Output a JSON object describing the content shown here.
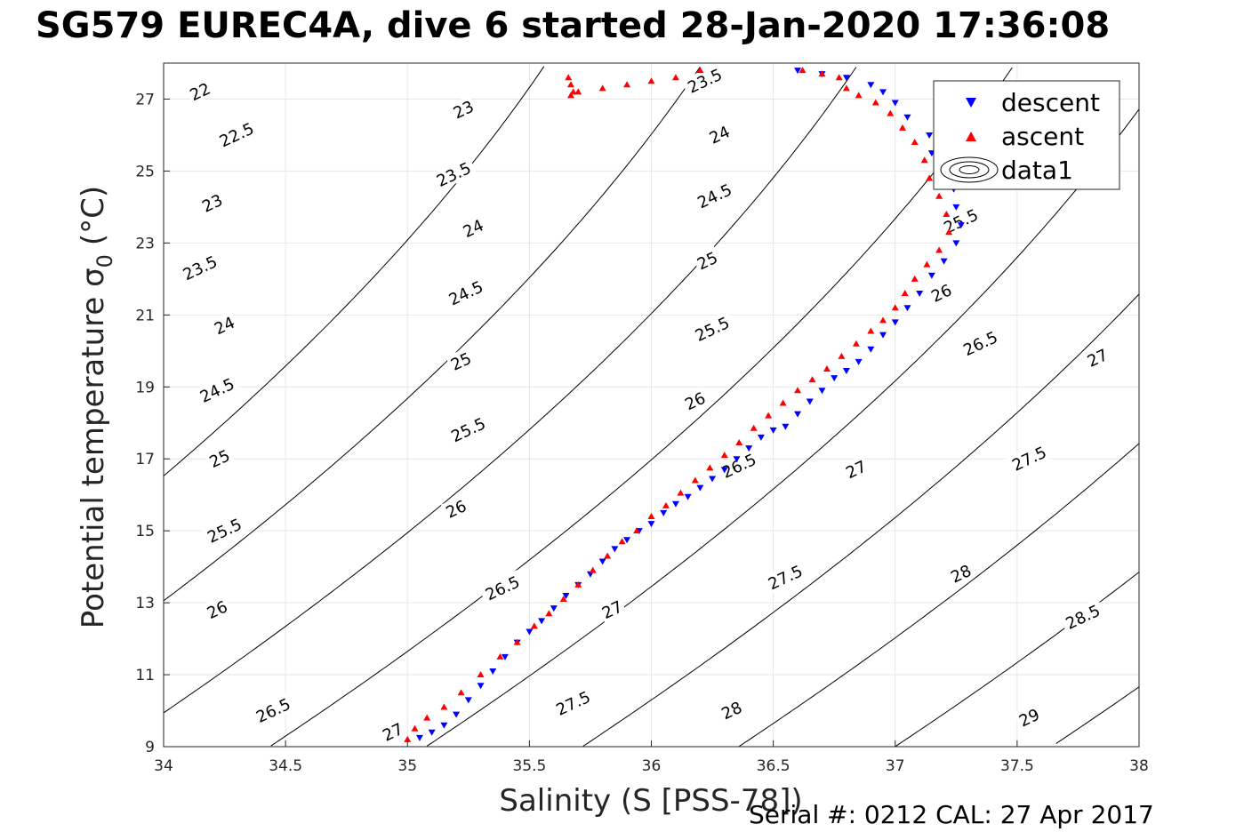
{
  "title": "SG579 EUREC4A, dive 6 started 28-Jan-2020 17:36:08",
  "footer": "Serial #: 0212  CAL: 27 Apr 2017",
  "chart_data": {
    "type": "scatter",
    "xlabel": "Salinity (S [PSS-78])",
    "ylabel": "Potential temperature σ",
    "ylabel_sub": "0",
    "ylabel_unit": "(°C)",
    "xlim": [
      34,
      38
    ],
    "ylim": [
      9,
      28
    ],
    "xticks": [
      34,
      34.5,
      35,
      35.5,
      36,
      36.5,
      37,
      37.5,
      38
    ],
    "xtick_labels": [
      "34",
      "34.5",
      "35",
      "35.5",
      "36",
      "36.5",
      "37",
      "37.5",
      "38"
    ],
    "yticks": [
      9,
      11,
      13,
      15,
      17,
      19,
      21,
      23,
      25,
      27
    ],
    "ytick_labels": [
      "9",
      "11",
      "13",
      "15",
      "17",
      "19",
      "21",
      "23",
      "25",
      "27"
    ],
    "grid": true,
    "legend_position": "top-right",
    "legend": [
      {
        "label": "descent",
        "marker": "triangle-down",
        "color": "#0000ff"
      },
      {
        "label": "ascent",
        "marker": "triangle-up",
        "color": "#ff0000"
      },
      {
        "label": "data1",
        "marker": "contour-ellipses",
        "color": "#000000"
      }
    ],
    "contour_levels": [
      22,
      22.5,
      23,
      23.5,
      24,
      24.5,
      25,
      25.5,
      26,
      26.5,
      27,
      27.5,
      28,
      28.5,
      29
    ],
    "contour_labels": [
      {
        "text": "22",
        "s": 34.15,
        "t": 27.2
      },
      {
        "text": "22.5",
        "s": 34.3,
        "t": 26.0
      },
      {
        "text": "23",
        "s": 34.2,
        "t": 24.1
      },
      {
        "text": "23",
        "s": 35.23,
        "t": 26.7
      },
      {
        "text": "23.5",
        "s": 34.15,
        "t": 22.3
      },
      {
        "text": "23.5",
        "s": 35.19,
        "t": 24.9
      },
      {
        "text": "23.5",
        "s": 36.22,
        "t": 27.5
      },
      {
        "text": "24",
        "s": 34.25,
        "t": 20.7
      },
      {
        "text": "24",
        "s": 35.27,
        "t": 23.4
      },
      {
        "text": "24",
        "s": 36.28,
        "t": 26.0
      },
      {
        "text": "24.5",
        "s": 34.22,
        "t": 18.9
      },
      {
        "text": "24.5",
        "s": 35.24,
        "t": 21.6
      },
      {
        "text": "24.5",
        "s": 36.26,
        "t": 24.3
      },
      {
        "text": "25",
        "s": 34.23,
        "t": 17.0
      },
      {
        "text": "25",
        "s": 35.22,
        "t": 19.7
      },
      {
        "text": "25",
        "s": 36.23,
        "t": 22.5
      },
      {
        "text": "25.5",
        "s": 34.25,
        "t": 15.0
      },
      {
        "text": "25.5",
        "s": 35.25,
        "t": 17.8
      },
      {
        "text": "25.5",
        "s": 36.25,
        "t": 20.6
      },
      {
        "text": "25.5",
        "s": 37.27,
        "t": 23.6
      },
      {
        "text": "26",
        "s": 34.22,
        "t": 12.8
      },
      {
        "text": "26",
        "s": 35.2,
        "t": 15.6
      },
      {
        "text": "26",
        "s": 36.18,
        "t": 18.6
      },
      {
        "text": "26",
        "s": 37.19,
        "t": 21.6
      },
      {
        "text": "26.5",
        "s": 34.45,
        "t": 10.0
      },
      {
        "text": "26.5",
        "s": 35.39,
        "t": 13.4
      },
      {
        "text": "26.5",
        "s": 36.36,
        "t": 16.8
      },
      {
        "text": "26.5",
        "s": 37.35,
        "t": 20.2
      },
      {
        "text": "27",
        "s": 34.94,
        "t": 9.4
      },
      {
        "text": "27",
        "s": 35.84,
        "t": 12.8
      },
      {
        "text": "27",
        "s": 36.84,
        "t": 16.7
      },
      {
        "text": "27",
        "s": 37.83,
        "t": 19.8
      },
      {
        "text": "27.5",
        "s": 35.68,
        "t": 10.2
      },
      {
        "text": "27.5",
        "s": 36.55,
        "t": 13.7
      },
      {
        "text": "27.5",
        "s": 37.55,
        "t": 17.0
      },
      {
        "text": "28",
        "s": 36.33,
        "t": 10.0
      },
      {
        "text": "28",
        "s": 37.27,
        "t": 13.8
      },
      {
        "text": "28.5",
        "s": 37.77,
        "t": 12.6
      },
      {
        "text": "29",
        "s": 37.55,
        "t": 9.8
      }
    ],
    "series": [
      {
        "name": "descent",
        "points": [
          [
            35.05,
            9.25
          ],
          [
            35.1,
            9.4
          ],
          [
            35.15,
            9.6
          ],
          [
            35.2,
            9.9
          ],
          [
            35.25,
            10.3
          ],
          [
            35.3,
            10.7
          ],
          [
            35.35,
            11.1
          ],
          [
            35.4,
            11.5
          ],
          [
            35.45,
            11.9
          ],
          [
            35.5,
            12.2
          ],
          [
            35.55,
            12.5
          ],
          [
            35.6,
            12.85
          ],
          [
            35.65,
            13.2
          ],
          [
            35.7,
            13.5
          ],
          [
            35.75,
            13.8
          ],
          [
            35.8,
            14.15
          ],
          [
            35.85,
            14.5
          ],
          [
            35.9,
            14.75
          ],
          [
            35.95,
            15.0
          ],
          [
            36.0,
            15.2
          ],
          [
            36.05,
            15.5
          ],
          [
            36.1,
            15.75
          ],
          [
            36.15,
            15.95
          ],
          [
            36.2,
            16.2
          ],
          [
            36.25,
            16.45
          ],
          [
            36.3,
            16.7
          ],
          [
            36.35,
            17.0
          ],
          [
            36.4,
            17.3
          ],
          [
            36.45,
            17.6
          ],
          [
            36.5,
            17.8
          ],
          [
            36.55,
            17.9
          ],
          [
            36.6,
            18.25
          ],
          [
            36.65,
            18.6
          ],
          [
            36.7,
            18.9
          ],
          [
            36.75,
            19.25
          ],
          [
            36.8,
            19.45
          ],
          [
            36.85,
            19.7
          ],
          [
            36.9,
            20.05
          ],
          [
            36.95,
            20.45
          ],
          [
            37.0,
            20.8
          ],
          [
            37.05,
            21.2
          ],
          [
            37.1,
            21.6
          ],
          [
            37.15,
            22.1
          ],
          [
            37.2,
            22.5
          ],
          [
            37.25,
            23.0
          ],
          [
            37.27,
            23.5
          ],
          [
            37.25,
            24.0
          ],
          [
            37.24,
            24.5
          ],
          [
            37.2,
            25.0
          ],
          [
            37.15,
            25.5
          ],
          [
            37.14,
            26.0
          ],
          [
            37.05,
            26.5
          ],
          [
            37.0,
            26.9
          ],
          [
            36.95,
            27.2
          ],
          [
            36.9,
            27.4
          ],
          [
            36.8,
            27.6
          ],
          [
            36.7,
            27.7
          ],
          [
            36.6,
            27.8
          ]
        ]
      },
      {
        "name": "ascent",
        "points": [
          [
            35.0,
            9.2
          ],
          [
            35.03,
            9.5
          ],
          [
            35.08,
            9.8
          ],
          [
            35.15,
            10.1
          ],
          [
            35.22,
            10.5
          ],
          [
            35.3,
            11.0
          ],
          [
            35.38,
            11.5
          ],
          [
            35.45,
            11.9
          ],
          [
            35.52,
            12.35
          ],
          [
            35.58,
            12.7
          ],
          [
            35.64,
            13.1
          ],
          [
            35.7,
            13.5
          ],
          [
            35.76,
            13.9
          ],
          [
            35.82,
            14.3
          ],
          [
            35.88,
            14.7
          ],
          [
            35.94,
            15.0
          ],
          [
            36.0,
            15.4
          ],
          [
            36.06,
            15.7
          ],
          [
            36.12,
            16.05
          ],
          [
            36.18,
            16.4
          ],
          [
            36.24,
            16.75
          ],
          [
            36.3,
            17.1
          ],
          [
            36.36,
            17.45
          ],
          [
            36.42,
            17.85
          ],
          [
            36.48,
            18.2
          ],
          [
            36.54,
            18.55
          ],
          [
            36.6,
            18.9
          ],
          [
            36.66,
            19.2
          ],
          [
            36.72,
            19.5
          ],
          [
            36.78,
            19.85
          ],
          [
            36.84,
            20.2
          ],
          [
            36.9,
            20.55
          ],
          [
            36.95,
            20.85
          ],
          [
            37.0,
            21.2
          ],
          [
            37.04,
            21.6
          ],
          [
            37.08,
            22.0
          ],
          [
            37.13,
            22.4
          ],
          [
            37.18,
            22.8
          ],
          [
            37.22,
            23.3
          ],
          [
            37.21,
            23.8
          ],
          [
            37.18,
            24.3
          ],
          [
            37.14,
            24.8
          ],
          [
            37.12,
            25.3
          ],
          [
            37.08,
            25.8
          ],
          [
            37.03,
            26.2
          ],
          [
            36.98,
            26.6
          ],
          [
            36.92,
            26.9
          ],
          [
            36.85,
            27.1
          ],
          [
            36.8,
            27.3
          ],
          [
            36.77,
            27.6
          ],
          [
            36.7,
            27.7
          ],
          [
            36.62,
            27.8
          ],
          [
            36.2,
            27.8
          ],
          [
            36.1,
            27.6
          ],
          [
            36.0,
            27.5
          ],
          [
            35.9,
            27.4
          ],
          [
            35.8,
            27.3
          ],
          [
            35.7,
            27.2
          ],
          [
            35.67,
            27.1
          ],
          [
            35.67,
            27.4
          ],
          [
            35.66,
            27.6
          ],
          [
            35.68,
            27.2
          ]
        ]
      }
    ]
  }
}
